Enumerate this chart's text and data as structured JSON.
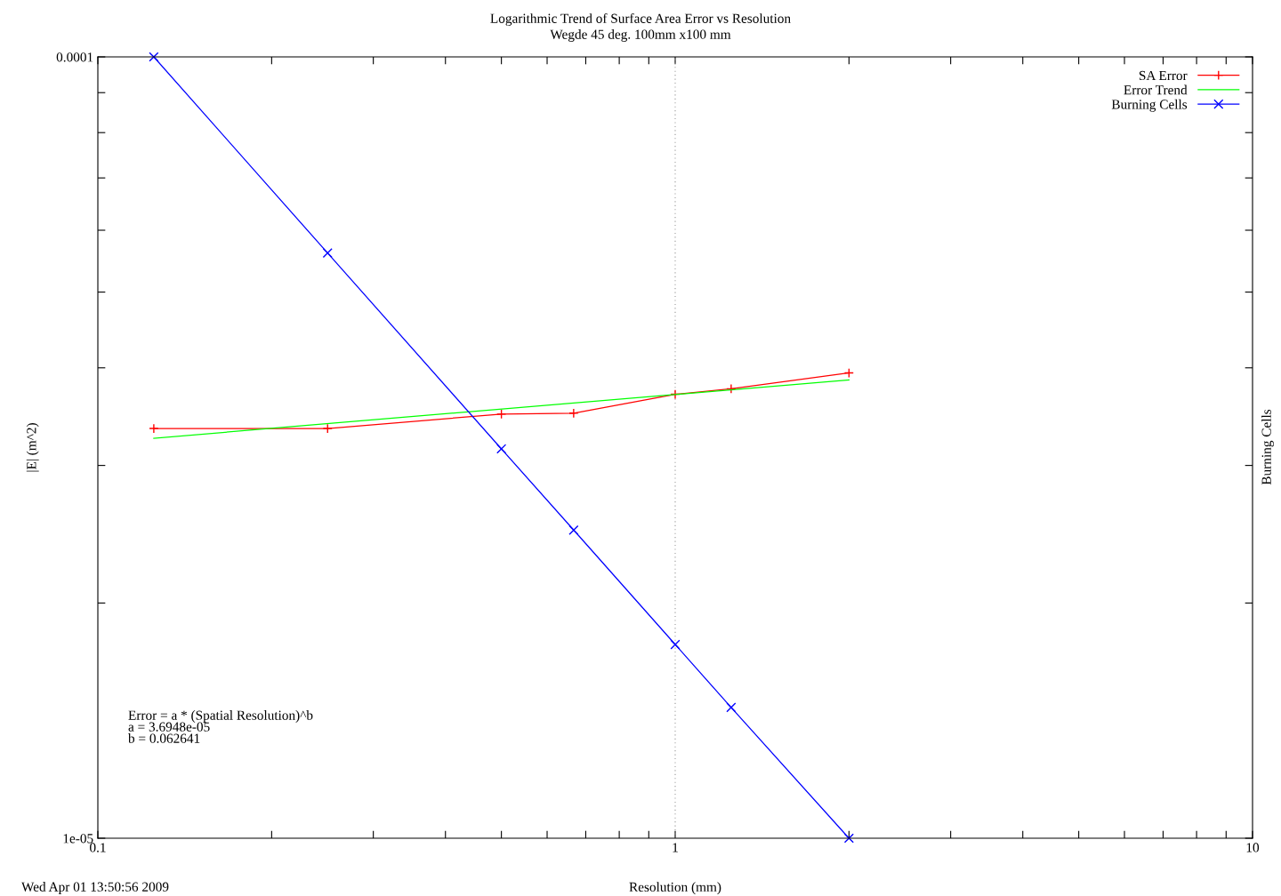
{
  "chart_data": {
    "type": "line",
    "title": "Logarithmic Trend of Surface Area Error vs Resolution",
    "subtitle": "Wegde 45 deg. 100mm x100 mm",
    "xlabel": "Resolution (mm)",
    "ylabel": "|E| (m^2)",
    "y2label": "Burning Cells",
    "log": "xy",
    "grid": "x",
    "legend": "top right",
    "xlim": [
      0.1,
      10
    ],
    "xticks": [
      0.1,
      {
        "value": 0.2,
        "label": null
      },
      {
        "value": 0.3,
        "label": null
      },
      {
        "value": 0.4,
        "label": null
      },
      {
        "value": 0.5,
        "label": null
      },
      {
        "value": 0.6,
        "label": null
      },
      {
        "value": 0.7,
        "label": null
      },
      {
        "value": 0.8,
        "label": null
      },
      {
        "value": 0.9,
        "label": null
      },
      1,
      {
        "value": 2,
        "label": null
      },
      {
        "value": 3,
        "label": null
      },
      {
        "value": 4,
        "label": null
      },
      {
        "value": 5,
        "label": null
      },
      {
        "value": 6,
        "label": null
      },
      {
        "value": 7,
        "label": null
      },
      {
        "value": 8,
        "label": null
      },
      {
        "value": 9,
        "label": null
      },
      10
    ],
    "ylim": [
      1e-05,
      0.0001
    ],
    "yticks": [
      {
        "value": 1e-05,
        "label": "1e-05"
      },
      {
        "value": 2e-05,
        "label": null
      },
      {
        "value": 3e-05,
        "label": null
      },
      {
        "value": 4e-05,
        "label": null
      },
      {
        "value": 5e-05,
        "label": null
      },
      {
        "value": 6e-05,
        "label": null
      },
      {
        "value": 7e-05,
        "label": null
      },
      {
        "value": 8e-05,
        "label": null
      },
      {
        "value": 9e-05,
        "label": null
      },
      {
        "value": 0.0001,
        "label": "0.0001"
      }
    ],
    "series": [
      {
        "name": "SA Error",
        "color": "#ff0000",
        "marker": "plus",
        "x": [
          0.125,
          0.25,
          0.5,
          0.667,
          1,
          1.25,
          2
        ],
        "values": [
          3.345e-05,
          3.345e-05,
          3.49e-05,
          3.5e-05,
          3.7e-05,
          3.76e-05,
          3.94e-05
        ]
      },
      {
        "name": "Error Trend",
        "color": "#00ff00",
        "marker": "none",
        "x": [
          0.125,
          2
        ],
        "values": [
          3.25e-05,
          3.86e-05
        ]
      },
      {
        "name": "Burning Cells",
        "color": "#0000ff",
        "marker": "cross",
        "x": [
          0.125,
          0.25,
          0.5,
          0.667,
          1,
          1.25,
          2
        ],
        "values": [
          0.0001,
          5.61e-05,
          3.15e-05,
          2.48e-05,
          1.77e-05,
          1.47e-05,
          1e-05
        ]
      }
    ],
    "annotations": [
      "Error = a * (Spatial Resolution)^b",
      "a = 3.6948e-05",
      "b = 0.062641",
      "Wed Apr 01 13:50:56 2009"
    ]
  }
}
